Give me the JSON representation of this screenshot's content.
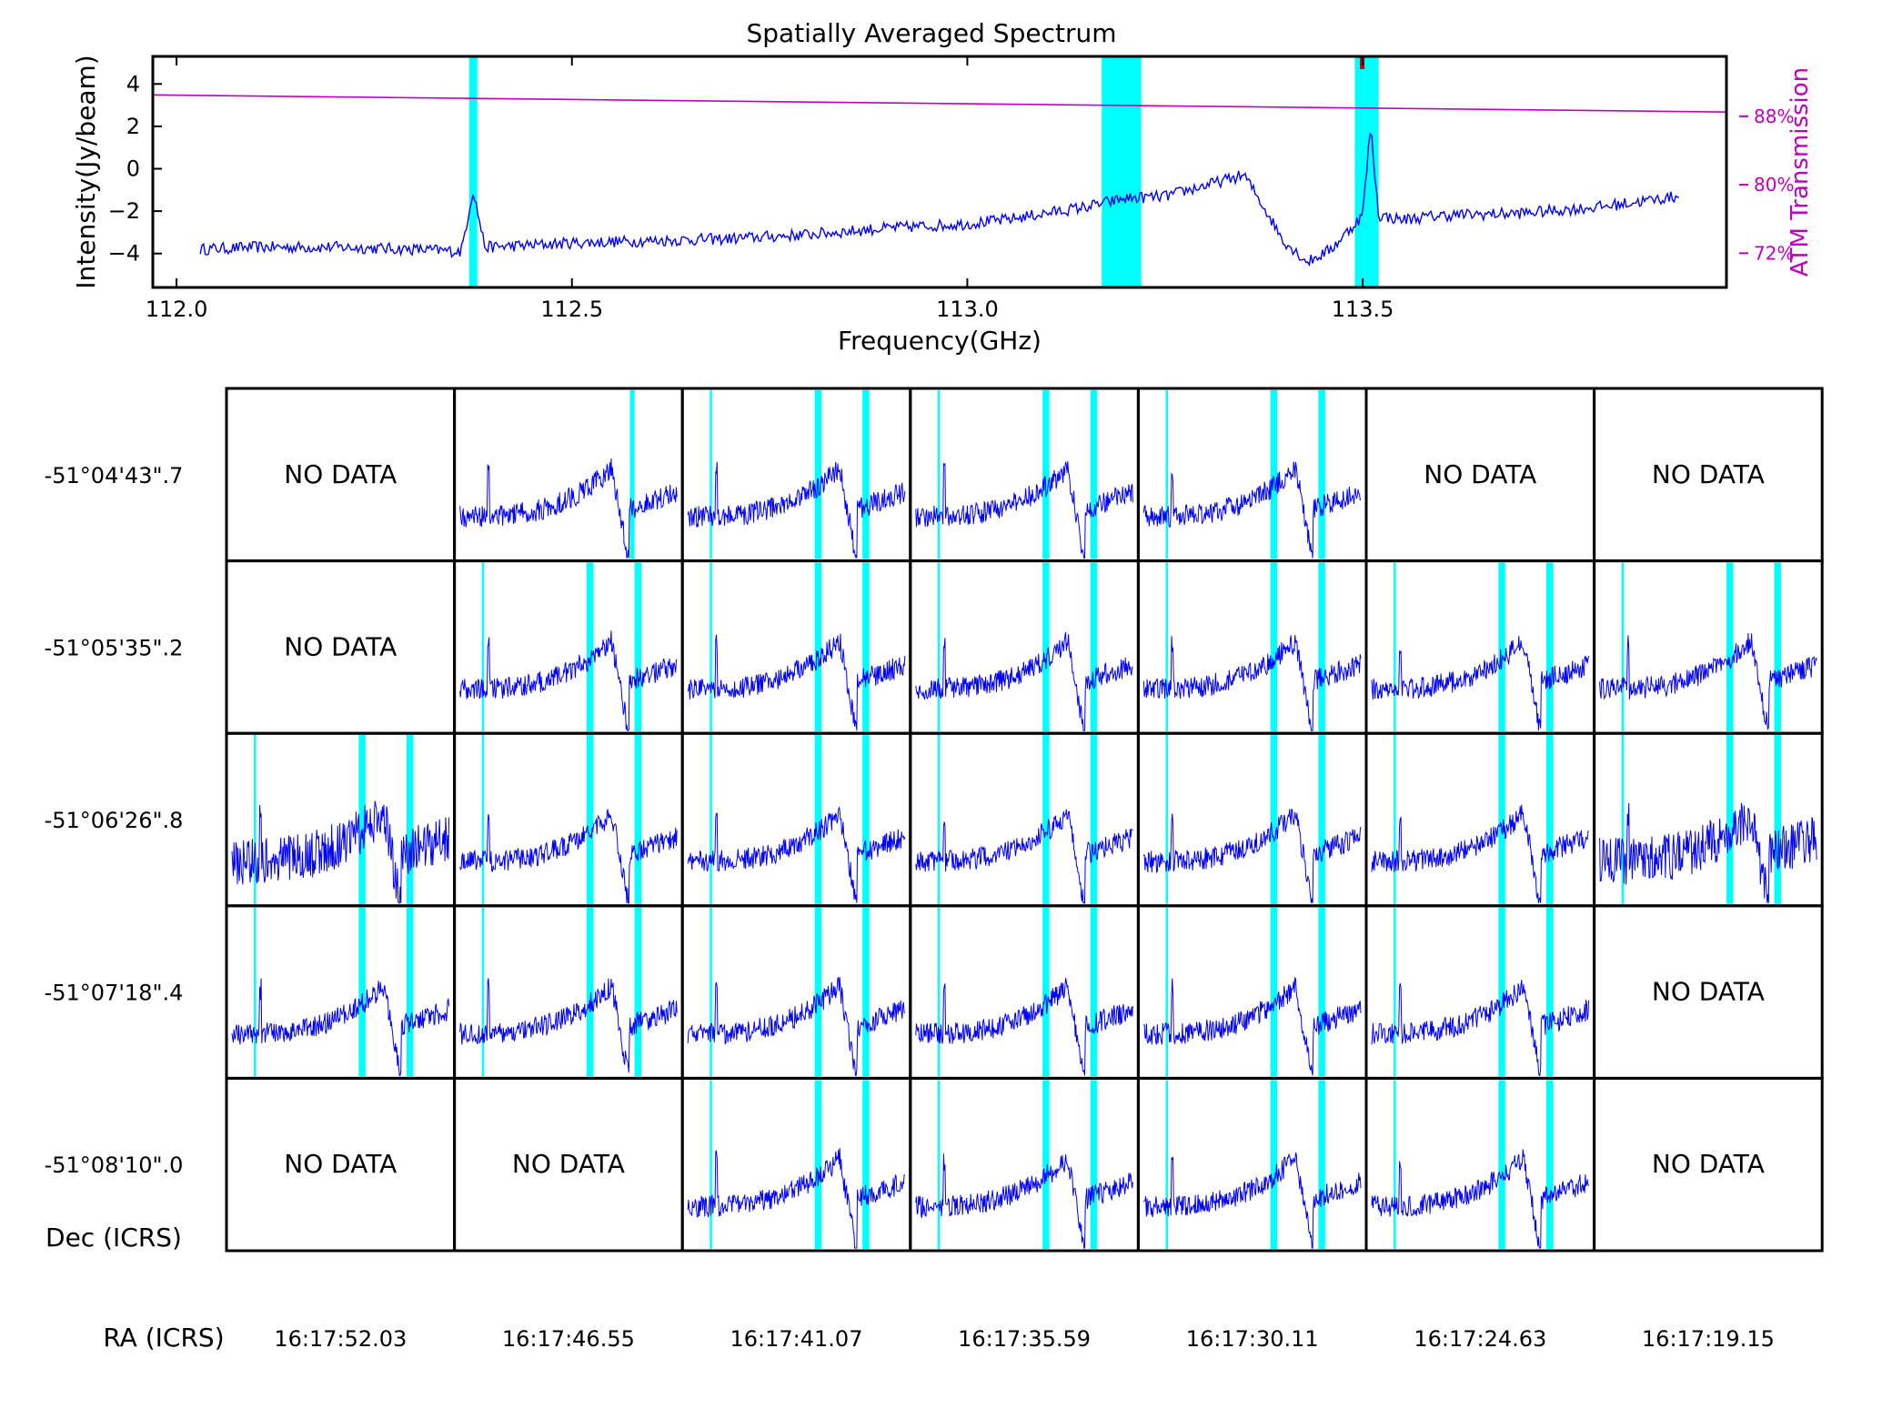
{
  "chart_data": [
    {
      "type": "line",
      "title": "Spatially Averaged Spectrum",
      "xlabel": "Frequency(GHz)",
      "ylabel": "Intensity(Jy/beam)",
      "y2label": "ATM Transmission",
      "xlim": [
        111.97,
        113.96
      ],
      "ylim": [
        -5.6,
        5.3
      ],
      "y2lim": [
        68,
        95
      ],
      "xticks": [
        112.0,
        112.5,
        113.0,
        113.5
      ],
      "xtick_labels": [
        "112.0",
        "112.5",
        "113.0",
        "113.5"
      ],
      "yticks": [
        4,
        2,
        0,
        -2,
        -4
      ],
      "ytick_labels": [
        "4",
        "2",
        "0",
        "−2",
        "−4"
      ],
      "y2ticks": [
        88,
        80,
        72
      ],
      "y2tick_labels": [
        "88%",
        "80%",
        "72%"
      ],
      "grid": false,
      "highlight_bands": [
        [
          112.37,
          112.38
        ],
        [
          113.17,
          113.22
        ],
        [
          113.49,
          113.52
        ]
      ],
      "flag_markers": [
        113.5
      ],
      "series": [
        {
          "color": "#0000ff",
          "x": [
            112.03,
            112.1,
            112.2,
            112.3,
            112.36,
            112.375,
            112.39,
            112.45,
            112.5,
            112.6,
            112.7,
            112.8,
            112.9,
            113.0,
            113.05,
            113.1,
            113.15,
            113.2,
            113.25,
            113.3,
            113.35,
            113.37,
            113.4,
            113.43,
            113.46,
            113.5,
            113.51,
            113.52,
            113.55,
            113.6,
            113.7,
            113.8,
            113.9
          ],
          "y": [
            -3.8,
            -3.7,
            -3.7,
            -3.8,
            -3.9,
            -1,
            -3.7,
            -3.6,
            -3.5,
            -3.4,
            -3.3,
            -3.1,
            -2.8,
            -2.6,
            -2.4,
            -2.1,
            -1.8,
            -1.4,
            -1.3,
            -0.8,
            -0.3,
            -1.5,
            -3.4,
            -4.4,
            -3.8,
            -2.2,
            2.0,
            -2.2,
            -2.4,
            -2.2,
            -2.1,
            -1.8,
            -1.3
          ]
        },
        {
          "color": "#c000c0",
          "x": [
            111.97,
            113.96
          ],
          "y2": [
            90.5,
            88.5
          ]
        }
      ]
    },
    {
      "type": "grid",
      "xlabel": "RA (ICRS)",
      "ylabel": "Dec (ICRS)",
      "col_labels": [
        "16:17:52.03",
        "16:17:46.55",
        "16:17:41.07",
        "16:17:35.59",
        "16:17:30.11",
        "16:17:24.63",
        "16:17:19.15"
      ],
      "row_labels": [
        "-51°04'43\".7",
        "-51°05'35\".2",
        "-51°06'26\".8",
        "-51°07'18\".4",
        "-51°08'10\".0"
      ],
      "no_data_label": "NO DATA",
      "panels": [
        [
          "NO DATA",
          "spectrum",
          "spectrum",
          "spectrum",
          "spectrum",
          "NO DATA",
          "NO DATA"
        ],
        [
          "NO DATA",
          "spectrum",
          "spectrum",
          "spectrum",
          "spectrum",
          "spectrum",
          "spectrum"
        ],
        [
          "spectrum",
          "spectrum",
          "spectrum",
          "spectrum",
          "spectrum",
          "spectrum",
          "spectrum"
        ],
        [
          "spectrum",
          "spectrum",
          "spectrum",
          "spectrum",
          "spectrum",
          "spectrum",
          "NO DATA"
        ],
        [
          "NO DATA",
          "NO DATA",
          "spectrum",
          "spectrum",
          "spectrum",
          "spectrum",
          "NO DATA"
        ]
      ]
    }
  ],
  "colors": {
    "spectrum": "#0000ff",
    "band": "#00ffff",
    "atm": "#c000c0",
    "flag": "#d00000",
    "frame": "#000000"
  }
}
